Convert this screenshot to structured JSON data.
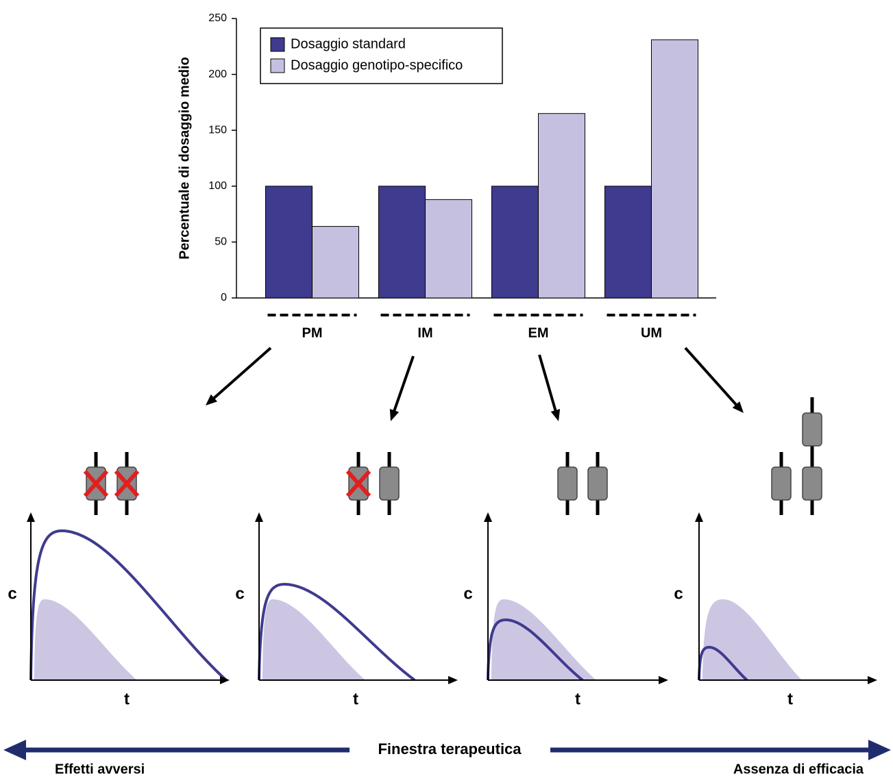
{
  "chart_data": {
    "type": "bar",
    "y_label": "Percentuale di dosaggio medio",
    "categories": [
      "PM",
      "IM",
      "EM",
      "UM"
    ],
    "series": [
      {
        "name": "Dosaggio standard",
        "color": "#3f3b8e",
        "values": [
          100,
          100,
          100,
          100
        ]
      },
      {
        "name": "Dosaggio genotipo-specifico",
        "color": "#c6c0e0",
        "values": [
          64,
          88,
          165,
          231
        ]
      }
    ],
    "ylim": [
      0,
      250
    ],
    "yticks": [
      0,
      50,
      100,
      150,
      200,
      250
    ],
    "grid": false,
    "legend": "top-left"
  },
  "panels": [
    {
      "y_label": "c",
      "x_label": "t"
    },
    {
      "y_label": "c",
      "x_label": "t"
    },
    {
      "y_label": "c",
      "x_label": "t"
    },
    {
      "y_label": "c",
      "x_label": "t"
    }
  ],
  "scale": {
    "title": "Finestra terapeutica",
    "left": "Effetti avversi",
    "right": "Assenza di efficacia"
  }
}
